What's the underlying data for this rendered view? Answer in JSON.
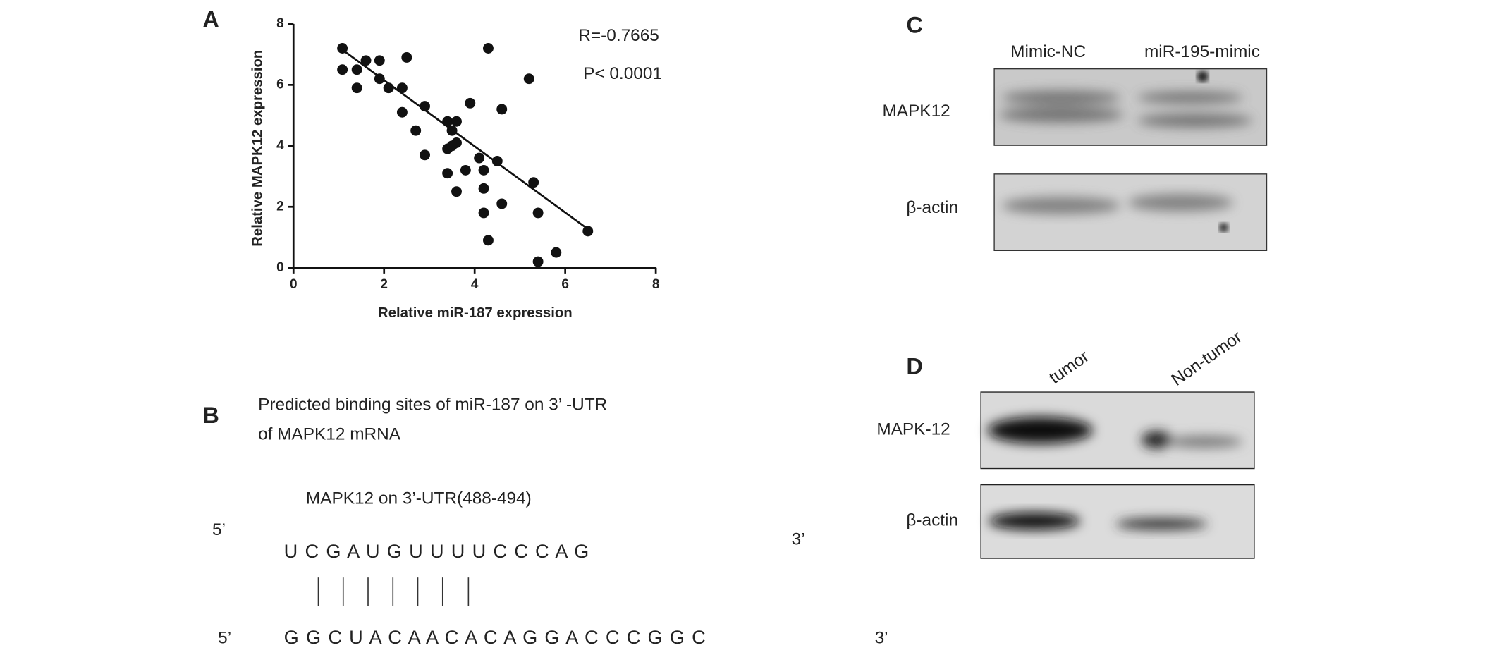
{
  "chart_data": {
    "type": "scatter",
    "panel_label": "A",
    "x_label": "Relative miR-187 expression",
    "y_label": "Relative MAPK12 expression",
    "annotations": [
      "R=-0.7665",
      "P< 0.0001"
    ],
    "x": [
      1.08,
      1.08,
      1.4,
      1.6,
      1.9,
      1.4,
      1.9,
      2.1,
      2.4,
      2.5,
      2.4,
      2.9,
      2.7,
      2.9,
      3.4,
      3.5,
      3.6,
      3.6,
      3.4,
      3.5,
      3.4,
      3.6,
      3.8,
      3.9,
      4.1,
      4.2,
      4.2,
      4.2,
      4.3,
      4.3,
      4.5,
      4.6,
      4.6,
      5.2,
      5.3,
      5.4,
      5.4,
      5.8,
      6.5
    ],
    "y": [
      7.2,
      6.5,
      6.5,
      6.8,
      6.8,
      5.9,
      6.2,
      5.9,
      5.9,
      6.9,
      5.1,
      5.3,
      4.5,
      3.7,
      4.8,
      4.5,
      4.8,
      4.1,
      3.9,
      4.0,
      3.1,
      2.5,
      3.2,
      5.4,
      3.6,
      3.2,
      2.6,
      1.8,
      0.9,
      7.2,
      3.5,
      5.2,
      2.1,
      6.2,
      2.8,
      1.8,
      0.2,
      0.5,
      1.2
    ],
    "color": "#111111",
    "fit": {
      "x": [
        1.08,
        6.6
      ],
      "y": [
        7.15,
        1.16
      ]
    },
    "xlim": [
      0,
      8
    ],
    "ylim": [
      0,
      8
    ],
    "xticks": [
      0,
      2,
      4,
      6,
      8
    ],
    "yticks": [
      0,
      2,
      4,
      6,
      8
    ]
  },
  "panel_b": {
    "label": "B",
    "title": [
      "Predicted binding sites of miR-187 on 3’ -UTR",
      "of MAPK12 mRNA"
    ],
    "site": "MAPK12 on 3’-UTR(488-494)",
    "target": {
      "five": "5’",
      "seq": "U C G A U G U U U U C C C A G",
      "three": "3’"
    },
    "mirna": {
      "five": "5’",
      "seq": "G G C U A C A A C A C A G G A C C C G G C",
      "three": "3’"
    }
  },
  "panel_c": {
    "label": "C",
    "lanes": [
      "Mimic-NC",
      "miR-195-mimic"
    ],
    "rows": [
      "MAPK12",
      "β-actin"
    ]
  },
  "panel_d": {
    "label": "D",
    "lanes": [
      "tumor",
      "Non-tumor"
    ],
    "rows": [
      "MAPK-12",
      "β-actin"
    ]
  }
}
